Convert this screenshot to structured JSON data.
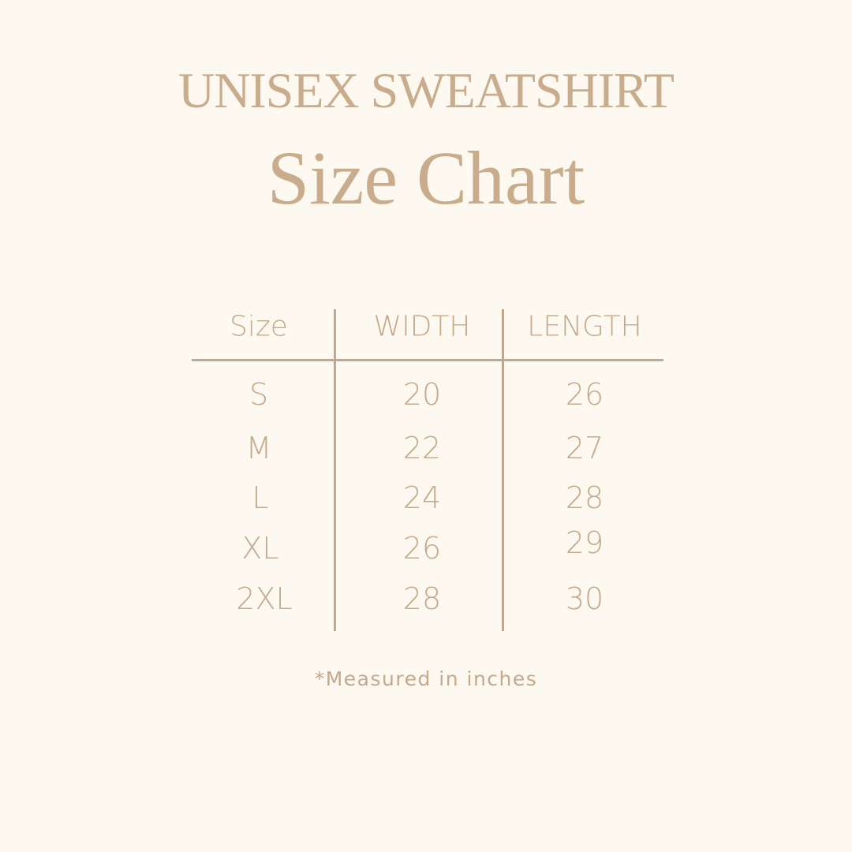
{
  "title_line1": "UNISEX SWEATSHIRT",
  "title_line2": "Size Chart",
  "table": {
    "headers": [
      "Size",
      "WIDTH",
      "LENGTH"
    ],
    "rows": [
      [
        "S",
        "20",
        "26"
      ],
      [
        "M",
        "22",
        "27"
      ],
      [
        "L",
        "24",
        "28"
      ],
      [
        "XL",
        "26",
        "29"
      ],
      [
        "2XL",
        "28",
        "30"
      ]
    ]
  },
  "footnote": "*Measured in inches",
  "colors": {
    "background": "#fdf8f0",
    "text": "#c4a98a",
    "rule": "#bca893"
  }
}
